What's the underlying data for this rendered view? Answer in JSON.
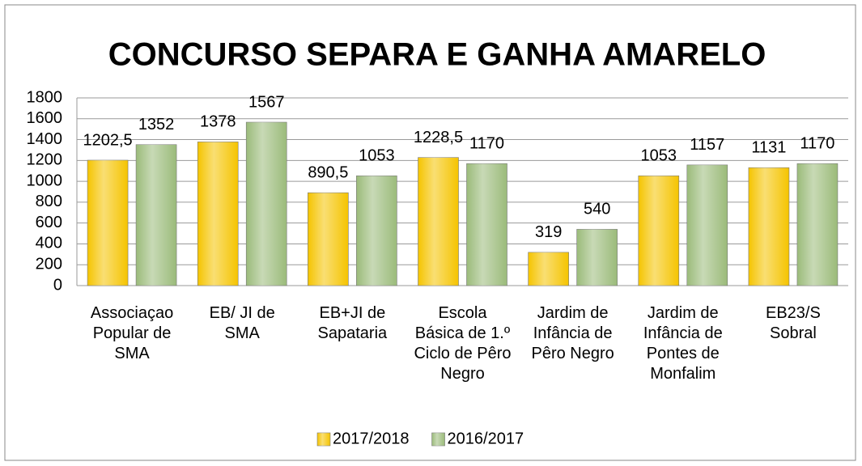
{
  "chart_data": {
    "type": "bar",
    "title": "CONCURSO SEPARA E GANHA AMARELO",
    "categories": [
      "Associaçao Popular de SMA",
      "EB/ JI de SMA",
      "EB+JI de Sapataria",
      "Escola Básica de 1.º Ciclo de Pêro Negro",
      "Jardim de Infância de Pêro Negro",
      "Jardim de Infância de Pontes de Monfalim",
      "EB23/S Sobral"
    ],
    "series": [
      {
        "name": "2017/2018",
        "color": "#f5c400",
        "values": [
          1202.5,
          1378,
          890.5,
          1228.5,
          319,
          1053,
          1131
        ],
        "value_labels": [
          "1202,5",
          "1378",
          "890,5",
          "1228,5",
          "319",
          "1053",
          "1131"
        ]
      },
      {
        "name": "2016/2017",
        "color": "#9bbb7a",
        "values": [
          1352,
          1567,
          1053,
          1170,
          540,
          1157,
          1170
        ]
      }
    ],
    "ylim": [
      0,
      1800
    ],
    "yticks": [
      0,
      200,
      400,
      600,
      800,
      1000,
      1200,
      1400,
      1600,
      1800
    ],
    "grid": true,
    "legend": "bottom"
  }
}
